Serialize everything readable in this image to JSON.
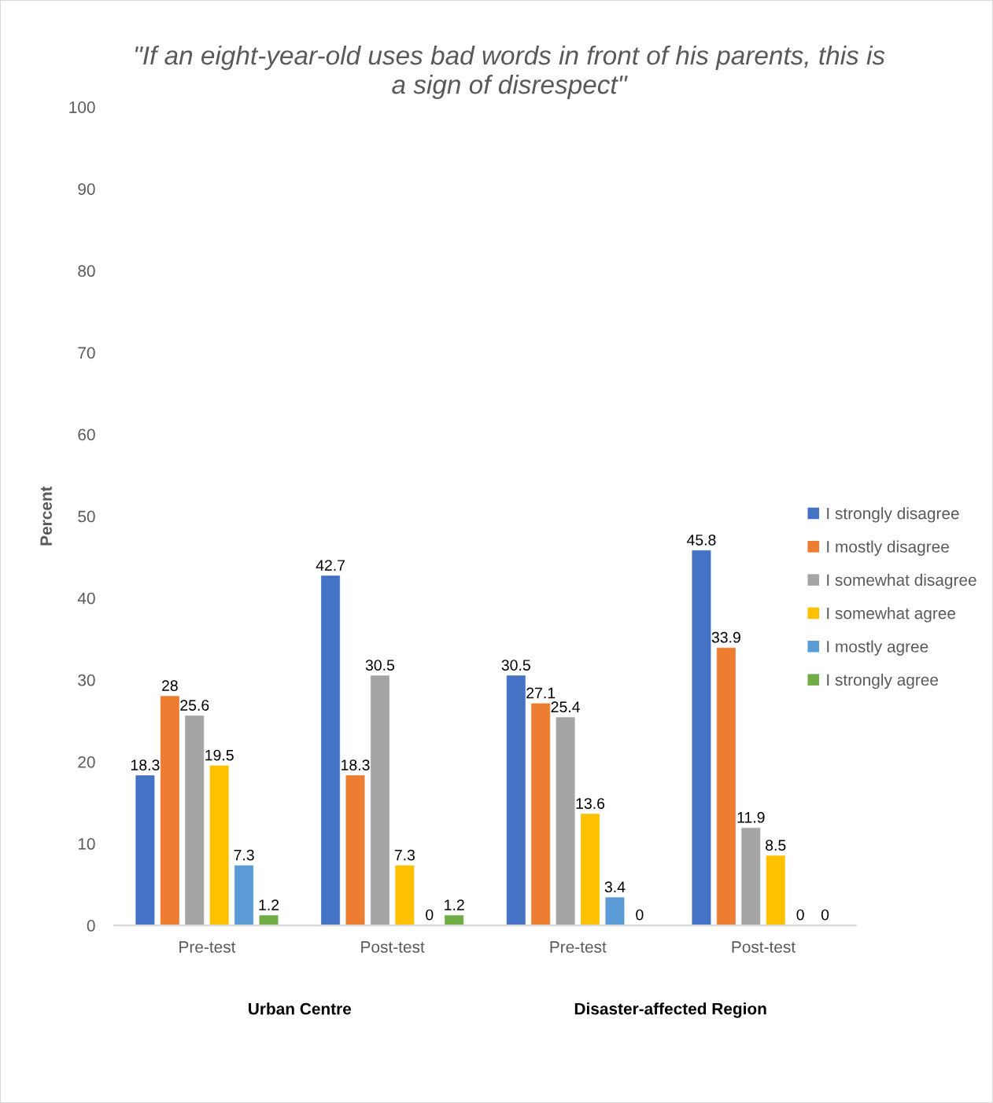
{
  "chart_data": {
    "type": "bar",
    "title": "\"If an eight-year-old uses bad words in front of his parents, this is a sign of disrespect\"",
    "ylabel": "Percent",
    "categories": [
      "Pre-test",
      "Post-test",
      "Pre-test",
      "Post-test"
    ],
    "series": [
      {
        "name": "I strongly disagree",
        "color": "#4472c4",
        "values": [
          18.3,
          42.7,
          30.5,
          45.8
        ]
      },
      {
        "name": "I mostly disagree",
        "color": "#ed7d31",
        "values": [
          28,
          18.3,
          27.1,
          33.9
        ]
      },
      {
        "name": "I somewhat disagree",
        "color": "#a5a5a5",
        "values": [
          25.6,
          30.5,
          25.4,
          11.9
        ]
      },
      {
        "name": "I somewhat agree",
        "color": "#ffc000",
        "values": [
          19.5,
          7.3,
          13.6,
          8.5
        ]
      },
      {
        "name": "I mostly agree",
        "color": "#5b9bd5",
        "values": [
          7.3,
          0,
          3.4,
          0
        ]
      },
      {
        "name": "I strongly agree",
        "color": "#70ad47",
        "values": [
          1.2,
          1.2,
          0,
          0
        ]
      }
    ],
    "ylim": [
      0,
      100
    ],
    "yticks": [
      0,
      10,
      20,
      30,
      40,
      50,
      60,
      70,
      80,
      90,
      100
    ],
    "data_labels": true,
    "grid": false,
    "legend": "right",
    "annotations": [
      "Urban Centre",
      "Disaster-affected Region"
    ]
  }
}
